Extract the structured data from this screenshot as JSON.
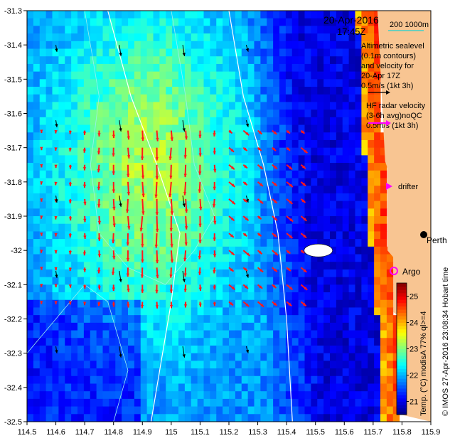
{
  "header": {
    "date": "20-Apr-2016",
    "time": "17:45Z",
    "isobath_label": "200  1000m"
  },
  "legend": {
    "altimetry_lines": [
      "Altimetric sealevel",
      "(0.1m contours)",
      "and velocity for",
      "20-Apr 17Z",
      "0.5m/s (1kt 3h)"
    ],
    "hf_lines": [
      "HF radar velocity",
      "(3-6h avg)noQC",
      "0.5m/s (1kt 3h)"
    ],
    "drifter_label": "drifter",
    "argo_label": "Argo",
    "city_label": "Perth"
  },
  "colorbar": {
    "title": "Temp. (°C) modisA 77% ql>=4",
    "ticks": [
      "21",
      "22",
      "23",
      "24",
      "25"
    ]
  },
  "credit": "© IMOS 27-Apr-2016 23:08:34 Hobart time",
  "chart_data": {
    "type": "heatmap",
    "x_ticks": [
      "114.5",
      "114.6",
      "114.7",
      "114.8",
      "114.9",
      "115",
      "115.1",
      "115.2",
      "115.3",
      "115.4",
      "115.5",
      "115.6",
      "115.7",
      "115.8",
      "115.9"
    ],
    "y_ticks": [
      "-31.3",
      "-31.4",
      "-31.5",
      "-31.6",
      "-31.7",
      "-31.8",
      "-31.9",
      "-32",
      "-32.1",
      "-32.2",
      "-32.3",
      "-32.4",
      "-32.5"
    ],
    "xlim": [
      114.5,
      115.9
    ],
    "ylim": [
      -32.5,
      -31.3
    ],
    "temperature_range": [
      20.5,
      25.5
    ],
    "field_description_zones": {
      "warm_core_temp": 23.2,
      "shelf_temp": 21.0,
      "offshore_temp": 21.8,
      "nearshore_warm_temp": 24.5
    },
    "colors": {
      "land": "#f8c592",
      "hf_arrow": "#ff1a1a",
      "alt_arrow": "#000000",
      "isobath": "#ffffff",
      "contour": "#9af0ee",
      "drifter": "#ff00ff",
      "argo": "#ff00ff",
      "scale_bar": "#3fd0c8"
    }
  }
}
